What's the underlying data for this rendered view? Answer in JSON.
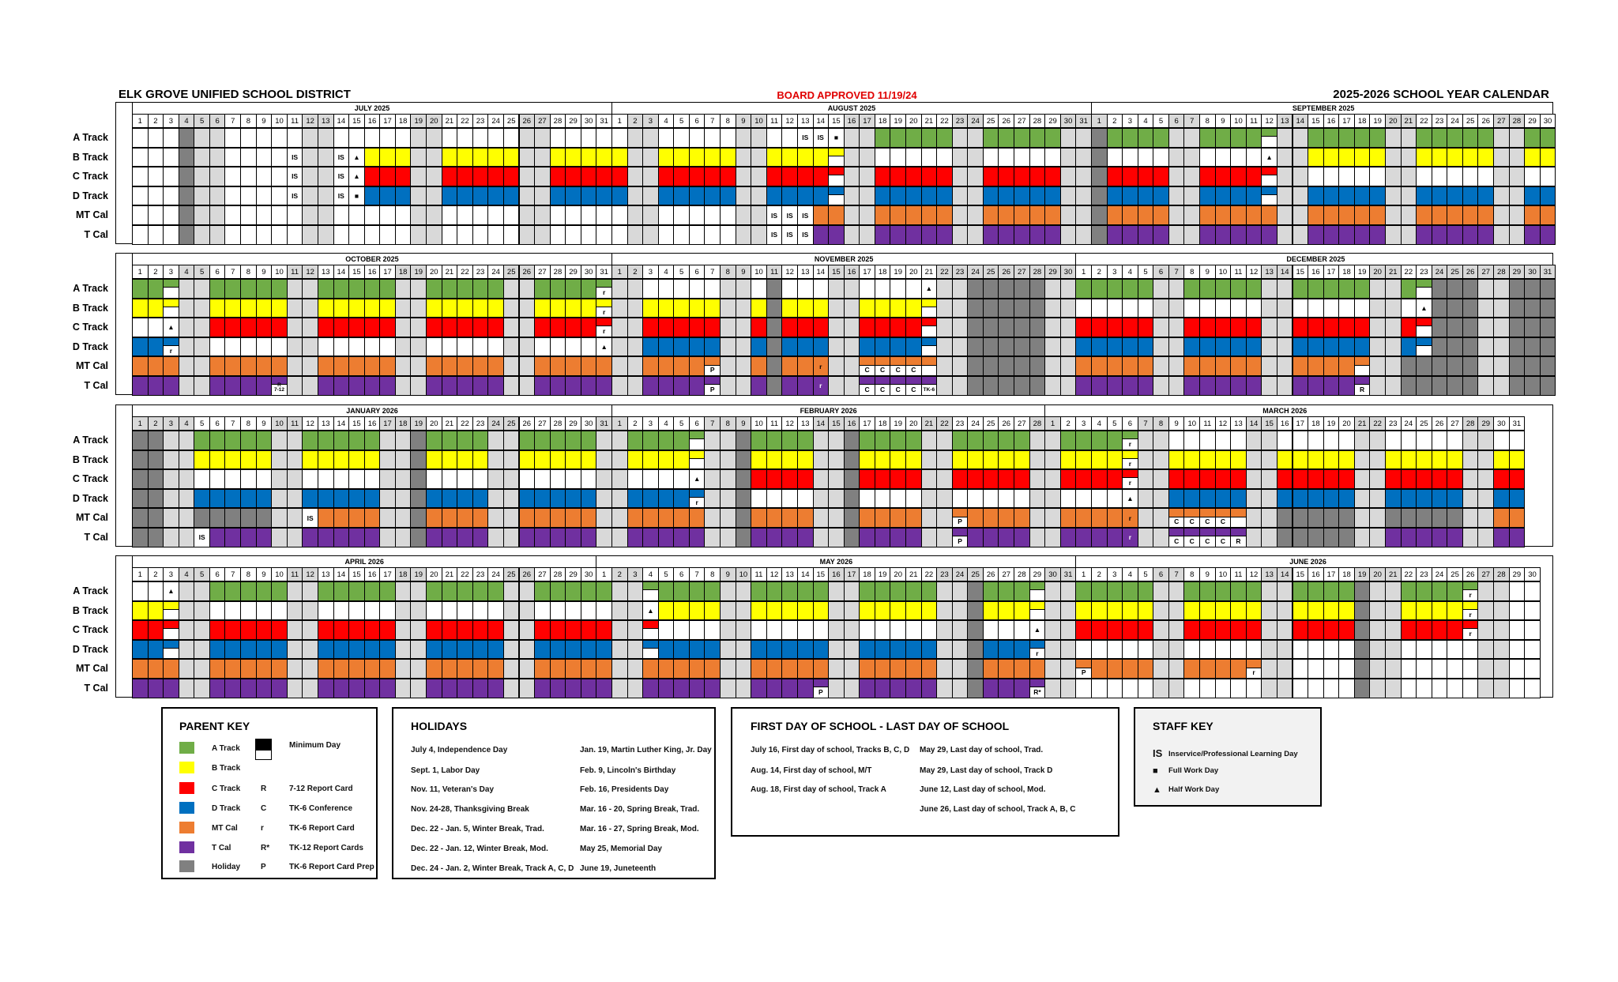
{
  "header": {
    "district": "ELK GROVE UNIFIED SCHOOL DISTRICT",
    "approval": "BOARD APPROVED 11/19/24",
    "year_title": "2025-2026 SCHOOL YEAR CALENDAR"
  },
  "colors": {
    "A": "#70AD47",
    "B": "#FFFF00",
    "C": "#FF0000",
    "D": "#0070C0",
    "M": "#ED7D31",
    "T": "#7030A0",
    "H": "#808080",
    "w": "#D9D9D9",
    ".": "#FFFFFF",
    "approval_red": "#E00000"
  },
  "calendar": {
    "row_keys": [
      "A",
      "B",
      "C",
      "D",
      "M",
      "T"
    ],
    "row_labels": [
      "A Track",
      "B Track",
      "C Track",
      "D Track",
      "MT Cal",
      "T Cal"
    ],
    "legend_encoding": "'.' no school, 'w' weekend, 'H' holiday, capital letter = school day of that track, lowercase = minimum day",
    "blocks": [
      {
        "months": [
          {
            "name": "JULY 2025",
            "days": 31,
            "rows": {
              "A": "...Hww.....ww.....ww.....ww....",
              "B": "...Hww.....ww..BBBwwBBBBBwwBBBB",
              "C": "...Hww.....ww..CCCwwCCCCCwwCCCC",
              "D": "...Hww.....ww..DDDwwDDDDDwwDDDD",
              "M": "...Hww.....ww.....ww.....ww....",
              "T": "...Hww.....ww.....ww.....ww...."
            },
            "marks": [
              [
                "B",
                11,
                "IS"
              ],
              [
                "B",
                14,
                "IS"
              ],
              [
                "B",
                15,
                "▲"
              ],
              [
                "C",
                11,
                "IS"
              ],
              [
                "C",
                14,
                "IS"
              ],
              [
                "C",
                15,
                "▲"
              ],
              [
                "D",
                11,
                "IS"
              ],
              [
                "D",
                14,
                "IS"
              ],
              [
                "D",
                15,
                "■"
              ]
            ]
          },
          {
            "name": "AUGUST 2025",
            "days": 31,
            "rows": {
              "A": ".ww.....ww.....wwAAAAAwwAAAAAww",
              "B": "BwwBBBBBwwBBBBbww.....ww.....ww",
              "C": "CwwCCCCCwwCCCCcwwCCCCCwwCCCCCww",
              "D": "DwwDDDDDwwDDDDdwwDDDDDwwDDDDDww",
              "M": ".ww.....ww...MMwwMMMMMwwMMMMMww",
              "T": ".ww.....ww...TTwwTTTTTwwTTTTTww"
            },
            "marks": [
              [
                "A",
                13,
                "IS"
              ],
              [
                "A",
                14,
                "IS"
              ],
              [
                "A",
                15,
                "■"
              ],
              [
                "M",
                11,
                "IS"
              ],
              [
                "M",
                12,
                "IS"
              ],
              [
                "M",
                13,
                "IS"
              ],
              [
                "T",
                11,
                "IS"
              ],
              [
                "T",
                12,
                "IS"
              ],
              [
                "T",
                13,
                "IS"
              ]
            ]
          },
          {
            "name": "SEPTEMBER 2025",
            "days": 30,
            "rows": {
              "A": "HAAAAwwAAAAawwAAAAAwwAAAAAwwAA",
              "B": "H....ww.....wwBBBBBwwBBBBBwwBB",
              "C": "HCCCCwwCCCCcww.....ww.....ww..",
              "D": "HDDDDwwDDDDdwwDDDDDwwDDDDDwwDD",
              "M": "HMMMMwwMMMMMwwMMMMMwwMMMMMwwMM",
              "T": "HTTTTwwTTTTTwwTTTTTwwTTTTTwwTT"
            },
            "marks": [
              [
                "B",
                12,
                "▲"
              ]
            ]
          }
        ]
      },
      {
        "months": [
          {
            "name": "OCTOBER 2025",
            "days": 31,
            "rows": {
              "A": "AAawwAAAAAwwAAAAAwwAAAAAwwAAAAa",
              "B": "BBbwwBBBBBwwBBBBBwwBBBBBwwBBBBb",
              "C": "...wwCCCCCwwCCCCCwwCCCCCwwCCCCc",
              "D": "DDdww.....ww.....ww.....ww.....",
              "M": "MMMwwMMMMMwwMMMMMwwMMMMMwwMMMMM",
              "T": "TTTwwTTTTtwwTTTTTwwTTTTTwwTTTTT"
            },
            "marks": [
              [
                "A",
                31,
                "r"
              ],
              [
                "B",
                31,
                "r"
              ],
              [
                "C",
                3,
                "▲"
              ],
              [
                "C",
                31,
                "r"
              ],
              [
                "D",
                3,
                "r"
              ],
              [
                "D",
                31,
                "▲"
              ],
              [
                "T",
                10,
                "R 7-12"
              ]
            ]
          },
          {
            "name": "NOVEMBER 2025",
            "days": 30,
            "rows": {
              "A": "ww.....ww.H...ww.....wwHHHHHww",
              "B": "wwBBBBBwwBHBBBwwBBBBbwwHHHHHww",
              "C": "wwCCCCCwwCHCCCwwCCCCcwwHHHHHww",
              "D": "wwDDDDDwwDHDDDwwDDDDdwwHHHHHww",
              "M": "wwMMMMmwwMHMMMwwmmmmmwwHHHHHww",
              "T": "wwTTTTtwwTHTTTwwtttttwwHHHHHww"
            },
            "marks": [
              [
                "A",
                21,
                "▲"
              ],
              [
                "M",
                7,
                "P"
              ],
              [
                "M",
                14,
                "r"
              ],
              [
                "M",
                17,
                "C"
              ],
              [
                "M",
                18,
                "C"
              ],
              [
                "M",
                19,
                "C"
              ],
              [
                "M",
                20,
                "C"
              ],
              [
                "T",
                7,
                "P"
              ],
              [
                "T",
                14,
                "r"
              ],
              [
                "T",
                17,
                "C"
              ],
              [
                "T",
                18,
                "C"
              ],
              [
                "T",
                19,
                "C"
              ],
              [
                "T",
                20,
                "C"
              ],
              [
                "T",
                21,
                "TK-6"
              ]
            ]
          },
          {
            "name": "DECEMBER 2025",
            "days": 31,
            "rows": {
              "A": "AAAAAwwAAAAAwwAAAAAwwAaHHHwwHHH",
              "B": ".....ww.....ww.....ww..HHHwwHHH",
              "C": "CCCCCwwCCCCCwwCCCCCwwCcHHHwwHHH",
              "D": "DDDDDwwDDDDDwwDDDDDwwDdHHHwwHHH",
              "M": "MMMMMwwMMMMMwwMMMMmwwHHHHHwwHHH",
              "T": "TTTTTwwTTTTTwwTTTTtwwHHHHHwwHHH"
            },
            "marks": [
              [
                "B",
                23,
                "▲"
              ],
              [
                "T",
                19,
                "R"
              ]
            ]
          }
        ]
      },
      {
        "months": [
          {
            "name": "JANUARY 2026",
            "days": 31,
            "rows": {
              "A": "HHwwAAAAAwwAAAAAwwHAAAAwwAAAAAw",
              "B": "HHwwBBBBBwwBBBBBwwHBBBBwwBBBBBw",
              "C": "HHww.....ww.....wwH....ww.....w",
              "D": "HHwwDDDDDwwDDDDDwwHDDDDwwDDDDDw",
              "M": "HHwwHHHHHww.MMMMwwHMMMMwwMMMMMw",
              "T": "HHww.TTTTwwTTTTTwwHTTTTwwTTTTTw"
            },
            "marks": [
              [
                "M",
                12,
                "IS"
              ],
              [
                "T",
                5,
                "IS"
              ]
            ]
          },
          {
            "name": "FEBRUARY 2026",
            "days": 28,
            "rows": {
              "A": "wAAAAawwHAAAAwwHAAAAwwAAAAAw",
              "B": "wBBBBbwwHBBBBwwHBBBBwwBBBBBw",
              "C": "w.....wwHCCCCwwHCCCCwwCCCCCw",
              "D": "wDDDDdwwH....wwH....ww.....w",
              "M": "wMMMMMwwHMMMMwwHMMMMwwmMMMMw",
              "T": "wTTTTTwwHTTTTwwHTTTTwwtTTTTw"
            },
            "marks": [
              [
                "C",
                6,
                "▲"
              ],
              [
                "D",
                6,
                "r"
              ],
              [
                "M",
                23,
                "P"
              ],
              [
                "T",
                23,
                "P"
              ]
            ]
          },
          {
            "name": "MARCH 2026",
            "days": 31,
            "rows": {
              "A": "wAAAAaww.....ww.....ww.....ww..",
              "B": "wBBBBbwwBBBBBwwBBBBBwwBBBBBwwBB",
              "C": "wCCCCcwwCCCCCwwCCCCCwwCCCCCwwCC",
              "D": "w.....wwDDDDDwwDDDDDwwDDDDDwwDD",
              "M": "wMMMMMwwmmmmmwwHHHHHwwHHHHHwwMM",
              "T": "wTTTTTwwtttttwwHHHHHwwTTTTTwwTT"
            },
            "marks": [
              [
                "A",
                6,
                "r"
              ],
              [
                "B",
                6,
                "r"
              ],
              [
                "C",
                6,
                "r"
              ],
              [
                "D",
                6,
                "▲"
              ],
              [
                "M",
                6,
                "r"
              ],
              [
                "M",
                9,
                "C"
              ],
              [
                "M",
                10,
                "C"
              ],
              [
                "M",
                11,
                "C"
              ],
              [
                "M",
                12,
                "C"
              ],
              [
                "T",
                6,
                "r"
              ],
              [
                "T",
                9,
                "C"
              ],
              [
                "T",
                10,
                "C"
              ],
              [
                "T",
                11,
                "C"
              ],
              [
                "T",
                12,
                "C"
              ],
              [
                "T",
                13,
                "R"
              ]
            ]
          }
        ]
      },
      {
        "months": [
          {
            "name": "APRIL 2026",
            "days": 30,
            "rows": {
              "A": "...wwAAAAAwwAAAAAwwAAAAAwwAAAA",
              "B": "BBbww.....ww.....ww.....ww....",
              "C": "CCcwwCCCCCwwCCCCCwwCCCCCwwCCCC",
              "D": "DDdwwDDDDDwwDDDDDwwDDDDDwwDDDD",
              "M": "MMMwwMMMMMwwMMMMMwwMMMMMwwMMMM",
              "T": "TTTwwTTTTTwwTTTTTwwTTTTTwwTTTT"
            },
            "marks": [
              [
                "A",
                3,
                "▲"
              ]
            ]
          },
          {
            "name": "MAY 2026",
            "days": 31,
            "rows": {
              "A": "AwwaAAAAwwAAAAAwwAAAAAwwHAAAaww",
              "B": ".ww.BBBBwwBBBBBwwBBBBBwwHBBBbww",
              "C": "Cwwc....ww.....ww.....wwH....ww",
              "D": "DwwdDDDDwwDDDDDwwDDDDDwwHDDDdww",
              "M": "MwwMMMMMwwMMMMMwwMMMMMwwHMMMMww",
              "T": "TwwTTTTTwwTTTTtwwTTTTTwwHTTTtww"
            },
            "marks": [
              [
                "B",
                4,
                "▲"
              ],
              [
                "C",
                29,
                "▲"
              ],
              [
                "D",
                29,
                "r"
              ],
              [
                "T",
                15,
                "P"
              ],
              [
                "T",
                29,
                "R*"
              ]
            ]
          },
          {
            "name": "JUNE 2026",
            "days": 30,
            "rows": {
              "A": "AAAAAwwAAAAAwwAAAAHwwAAAAaww..",
              "B": "BBBBBwwBBBBBwwBBBBHwwBBBBbww..",
              "C": "CCCCCwwCCCCCwwCCCCHwwCCCCcww..",
              "D": ".....ww.....ww....Hww.....ww..",
              "M": "mMMMMwwMMMMmww....Hww.....ww..",
              "T": ".....ww.....ww....Hww.....ww.."
            },
            "marks": [
              [
                "A",
                26,
                "r"
              ],
              [
                "B",
                26,
                "r"
              ],
              [
                "C",
                26,
                "r"
              ],
              [
                "M",
                1,
                "P"
              ],
              [
                "M",
                12,
                "r"
              ]
            ]
          }
        ]
      }
    ]
  },
  "parent_key": {
    "title": "PARENT KEY",
    "swatches": [
      {
        "key": "A",
        "label": "A Track"
      },
      {
        "key": "B",
        "label": "B Track"
      },
      {
        "key": "C",
        "label": "C Track"
      },
      {
        "key": "D",
        "label": "D Track"
      },
      {
        "key": "M",
        "label": "MT Cal"
      },
      {
        "key": "T",
        "label": "T Cal"
      },
      {
        "key": "H",
        "label": "Holiday"
      }
    ],
    "minimum_day": "Minimum Day",
    "codes": [
      {
        "code": "R",
        "label": "7-12 Report Card"
      },
      {
        "code": "C",
        "label": "TK-6 Conference"
      },
      {
        "code": "r",
        "label": "TK-6 Report Card"
      },
      {
        "code": "R*",
        "label": "TK-12 Report Cards"
      },
      {
        "code": "P",
        "label": "TK-6 Report Card Prep"
      }
    ]
  },
  "holidays": {
    "title": "HOLIDAYS",
    "left": [
      "July 4, Independence Day",
      "Sept. 1, Labor Day",
      "Nov. 11, Veteran's Day",
      "Nov. 24-28, Thanksgiving Break",
      "Dec. 22 - Jan. 5, Winter Break, Trad.",
      "Dec. 22 - Jan. 12, Winter Break, Mod.",
      "Dec. 24 - Jan. 2, Winter Break, Track A, C, D"
    ],
    "right": [
      "Jan. 19, Martin Luther King, Jr. Day",
      "Feb. 9, Lincoln's Birthday",
      "Feb. 16, Presidents Day",
      "Mar. 16 - 20, Spring Break, Trad.",
      "Mar. 16 - 27, Spring Break, Mod.",
      "May 25, Memorial Day",
      "June 19, Juneteenth"
    ]
  },
  "first_last": {
    "title": "FIRST DAY OF SCHOOL - LAST DAY OF SCHOOL",
    "left": [
      "July 16, First day of school, Tracks B, C, D",
      "Aug. 14, First day of school, M/T",
      "Aug. 18, First day of school, Track A"
    ],
    "right": [
      "May 29, Last day of school, Trad.",
      "May 29, Last day of school, Track D",
      "June 12, Last day of school, Mod.",
      "June 26, Last day of school, Track A, B, C"
    ]
  },
  "staff_key": {
    "title": "STAFF KEY",
    "items": [
      {
        "symbol": "IS",
        "label": "Inservice/Professional Learning Day"
      },
      {
        "symbol": "■",
        "label": "Full Work Day"
      },
      {
        "symbol": "▲",
        "label": "Half Work Day"
      }
    ]
  }
}
